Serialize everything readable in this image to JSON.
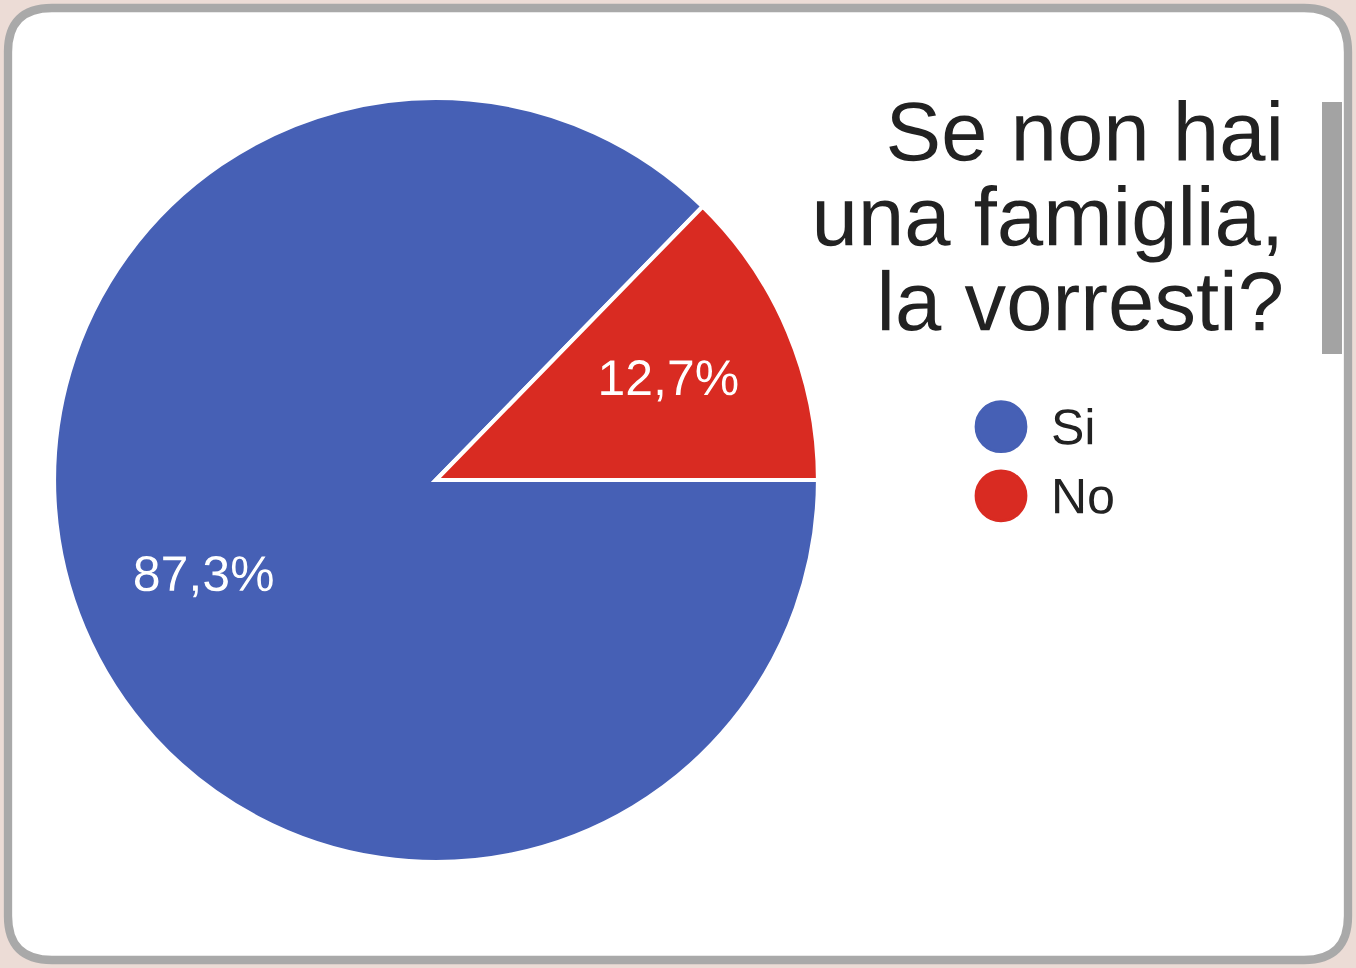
{
  "chart_data": {
    "type": "pie",
    "title": "Se non hai\nuna famiglia,\nla vorresti?",
    "categories": [
      "Si",
      "No"
    ],
    "values": [
      87.3,
      12.7
    ],
    "colors": [
      "#4660b5",
      "#d92b22"
    ],
    "value_labels": [
      "87,3%",
      "12,7%"
    ],
    "legend": "right"
  }
}
